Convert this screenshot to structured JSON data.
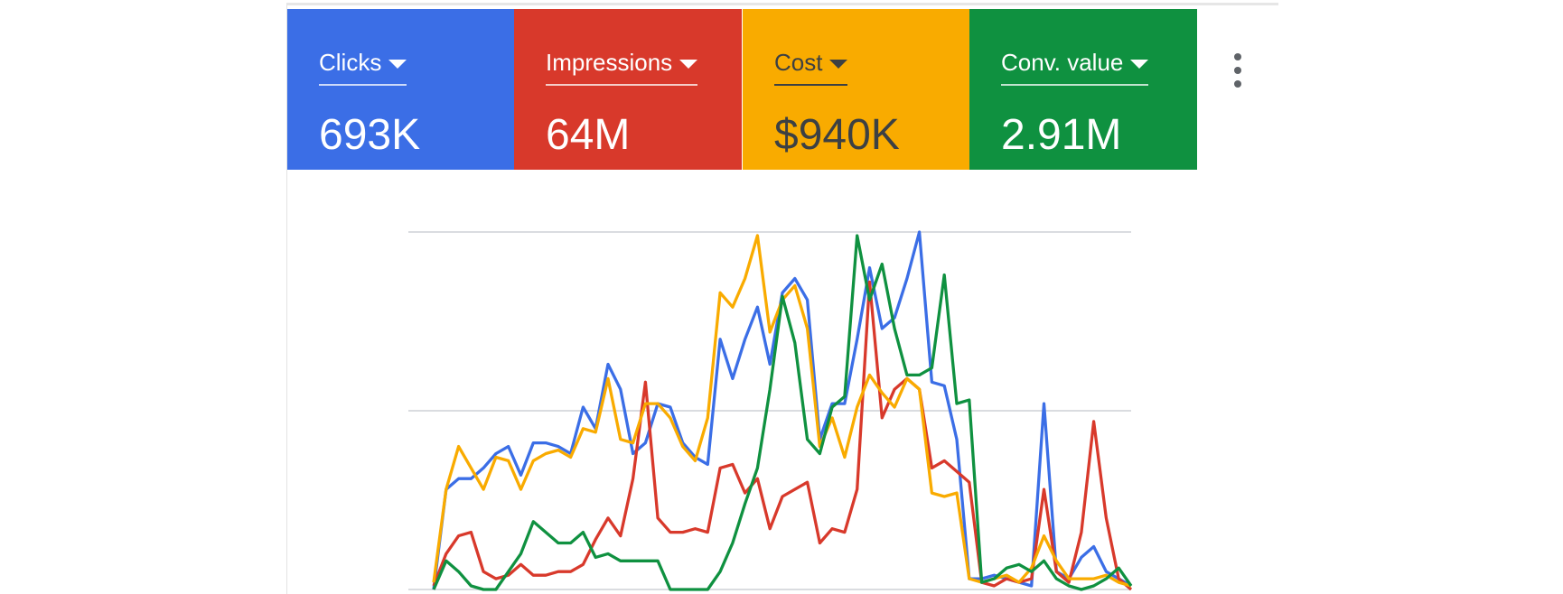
{
  "chart_data": {
    "type": "line",
    "series": [
      {
        "name": "Clicks",
        "total": "693K",
        "color": "#3b6ee6",
        "values": [
          0,
          28,
          31,
          31,
          34,
          38,
          40,
          32,
          41,
          41,
          40,
          38,
          51,
          45,
          63,
          56,
          38,
          41,
          52,
          51,
          41,
          37,
          35,
          70,
          59,
          70,
          79,
          63,
          83,
          87,
          81,
          42,
          52,
          52,
          70,
          90,
          73,
          76,
          87,
          100,
          58,
          57,
          42,
          3,
          3,
          4,
          3,
          2,
          1,
          52,
          5,
          3,
          9,
          12,
          5,
          3,
          1
        ]
      },
      {
        "name": "Impressions",
        "total": "64M",
        "color": "#d8392b",
        "values": [
          1,
          10,
          15,
          16,
          5,
          3,
          4,
          7,
          4,
          4,
          5,
          5,
          7,
          14,
          20,
          15,
          31,
          58,
          20,
          16,
          16,
          17,
          16,
          34,
          35,
          27,
          31,
          17,
          26,
          28,
          30,
          13,
          17,
          16,
          28,
          86,
          48,
          56,
          59,
          56,
          34,
          36,
          33,
          30,
          2,
          1,
          3,
          2,
          3,
          28,
          5,
          2,
          16,
          47,
          20,
          3,
          0
        ]
      },
      {
        "name": "Cost",
        "total": "$940K",
        "color": "#f9ab00",
        "values": [
          2,
          28,
          40,
          34,
          28,
          37,
          36,
          28,
          36,
          38,
          39,
          37,
          45,
          44,
          59,
          42,
          41,
          52,
          52,
          48,
          40,
          36,
          48,
          83,
          79,
          87,
          99,
          72,
          81,
          85,
          73,
          40,
          48,
          37,
          51,
          60,
          55,
          51,
          59,
          56,
          27,
          26,
          27,
          3,
          2,
          3,
          4,
          2,
          6,
          15,
          8,
          3,
          3,
          3,
          4,
          2,
          1
        ]
      },
      {
        "name": "Conv. value",
        "total": "2.91M",
        "color": "#0f9140",
        "values": [
          0,
          8,
          5,
          1,
          0,
          0,
          5,
          10,
          19,
          16,
          13,
          13,
          16,
          9,
          10,
          8,
          8,
          8,
          8,
          0,
          0,
          0,
          0,
          5,
          13,
          24,
          34,
          56,
          82,
          69,
          42,
          38,
          51,
          54,
          99,
          81,
          91,
          73,
          60,
          60,
          62,
          88,
          52,
          53,
          2,
          3,
          6,
          7,
          5,
          8,
          3,
          1,
          0,
          1,
          3,
          6,
          1
        ]
      }
    ],
    "ylim": [
      0,
      100
    ],
    "yticks": [
      0,
      50,
      100
    ],
    "grid": true
  }
}
